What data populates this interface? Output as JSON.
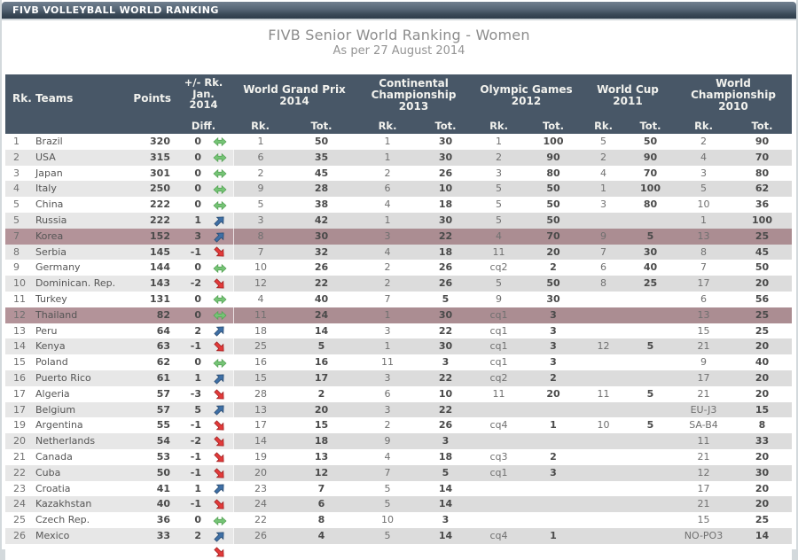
{
  "window": {
    "titlebar": "FIVB VOLLEYBALL WORLD RANKING"
  },
  "header": {
    "title": "FIVB Senior World Ranking - Women",
    "subtitle": "As per 27 August 2014"
  },
  "table": {
    "col_headers": {
      "rank_teams": "Rk. Teams",
      "points": "Points",
      "diff_lines": [
        "+/- Rk.",
        "Jan.",
        "2014"
      ],
      "diff_sub": "Diff.",
      "rk": "Rk.",
      "tot": "Tot.",
      "groups": [
        {
          "lines": [
            "World Grand Prix",
            "2014"
          ]
        },
        {
          "lines": [
            "Continental",
            "Championship",
            "2013"
          ]
        },
        {
          "lines": [
            "Olympic Games",
            "2012"
          ]
        },
        {
          "lines": [
            "World Cup",
            "2011"
          ]
        },
        {
          "lines": [
            "World",
            "Championship",
            "2010"
          ]
        }
      ]
    },
    "rows": [
      {
        "rank": "1",
        "team": "Brazil",
        "points": "320",
        "diff": "0",
        "trend": "same",
        "wgp_rk": "1",
        "wgp_tot": "50",
        "cc_rk": "1",
        "cc_tot": "30",
        "og_rk": "1",
        "og_tot": "100",
        "wc_rk": "5",
        "wc_tot": "50",
        "wch_rk": "2",
        "wch_tot": "90"
      },
      {
        "rank": "2",
        "team": "USA",
        "points": "315",
        "diff": "0",
        "trend": "same",
        "wgp_rk": "6",
        "wgp_tot": "35",
        "cc_rk": "1",
        "cc_tot": "30",
        "og_rk": "2",
        "og_tot": "90",
        "wc_rk": "2",
        "wc_tot": "90",
        "wch_rk": "4",
        "wch_tot": "70"
      },
      {
        "rank": "3",
        "team": "Japan",
        "points": "301",
        "diff": "0",
        "trend": "same",
        "wgp_rk": "2",
        "wgp_tot": "45",
        "cc_rk": "2",
        "cc_tot": "26",
        "og_rk": "3",
        "og_tot": "80",
        "wc_rk": "4",
        "wc_tot": "70",
        "wch_rk": "3",
        "wch_tot": "80"
      },
      {
        "rank": "4",
        "team": "Italy",
        "points": "250",
        "diff": "0",
        "trend": "same",
        "wgp_rk": "9",
        "wgp_tot": "28",
        "cc_rk": "6",
        "cc_tot": "10",
        "og_rk": "5",
        "og_tot": "50",
        "wc_rk": "1",
        "wc_tot": "100",
        "wch_rk": "5",
        "wch_tot": "62"
      },
      {
        "rank": "5",
        "team": "China",
        "points": "222",
        "diff": "0",
        "trend": "same",
        "wgp_rk": "5",
        "wgp_tot": "38",
        "cc_rk": "4",
        "cc_tot": "18",
        "og_rk": "5",
        "og_tot": "50",
        "wc_rk": "3",
        "wc_tot": "80",
        "wch_rk": "10",
        "wch_tot": "36"
      },
      {
        "rank": "5",
        "team": "Russia",
        "points": "222",
        "diff": "1",
        "trend": "up",
        "wgp_rk": "3",
        "wgp_tot": "42",
        "cc_rk": "1",
        "cc_tot": "30",
        "og_rk": "5",
        "og_tot": "50",
        "wc_rk": "",
        "wc_tot": "",
        "wch_rk": "1",
        "wch_tot": "100"
      },
      {
        "rank": "7",
        "team": "Korea",
        "points": "152",
        "diff": "3",
        "trend": "up",
        "wgp_rk": "8",
        "wgp_tot": "30",
        "cc_rk": "3",
        "cc_tot": "22",
        "og_rk": "4",
        "og_tot": "70",
        "wc_rk": "9",
        "wc_tot": "5",
        "wch_rk": "13",
        "wch_tot": "25",
        "highlight": true
      },
      {
        "rank": "8",
        "team": "Serbia",
        "points": "145",
        "diff": "-1",
        "trend": "down",
        "wgp_rk": "7",
        "wgp_tot": "32",
        "cc_rk": "4",
        "cc_tot": "18",
        "og_rk": "11",
        "og_tot": "20",
        "wc_rk": "7",
        "wc_tot": "30",
        "wch_rk": "8",
        "wch_tot": "45"
      },
      {
        "rank": "9",
        "team": "Germany",
        "points": "144",
        "diff": "0",
        "trend": "same",
        "wgp_rk": "10",
        "wgp_tot": "26",
        "cc_rk": "2",
        "cc_tot": "26",
        "og_rk": "cq2",
        "og_tot": "2",
        "wc_rk": "6",
        "wc_tot": "40",
        "wch_rk": "7",
        "wch_tot": "50"
      },
      {
        "rank": "10",
        "team": "Dominican. Rep.",
        "points": "143",
        "diff": "-2",
        "trend": "down",
        "wgp_rk": "12",
        "wgp_tot": "22",
        "cc_rk": "2",
        "cc_tot": "26",
        "og_rk": "5",
        "og_tot": "50",
        "wc_rk": "8",
        "wc_tot": "25",
        "wch_rk": "17",
        "wch_tot": "20"
      },
      {
        "rank": "11",
        "team": "Turkey",
        "points": "131",
        "diff": "0",
        "trend": "same",
        "wgp_rk": "4",
        "wgp_tot": "40",
        "cc_rk": "7",
        "cc_tot": "5",
        "og_rk": "9",
        "og_tot": "30",
        "wc_rk": "",
        "wc_tot": "",
        "wch_rk": "6",
        "wch_tot": "56"
      },
      {
        "rank": "12",
        "team": "Thailand",
        "points": "82",
        "diff": "0",
        "trend": "same",
        "wgp_rk": "11",
        "wgp_tot": "24",
        "cc_rk": "1",
        "cc_tot": "30",
        "og_rk": "cq1",
        "og_tot": "3",
        "wc_rk": "",
        "wc_tot": "",
        "wch_rk": "13",
        "wch_tot": "25",
        "highlight": true
      },
      {
        "rank": "13",
        "team": "Peru",
        "points": "64",
        "diff": "2",
        "trend": "up",
        "wgp_rk": "18",
        "wgp_tot": "14",
        "cc_rk": "3",
        "cc_tot": "22",
        "og_rk": "cq1",
        "og_tot": "3",
        "wc_rk": "",
        "wc_tot": "",
        "wch_rk": "15",
        "wch_tot": "25"
      },
      {
        "rank": "14",
        "team": "Kenya",
        "points": "63",
        "diff": "-1",
        "trend": "down",
        "wgp_rk": "25",
        "wgp_tot": "5",
        "cc_rk": "1",
        "cc_tot": "30",
        "og_rk": "cq1",
        "og_tot": "3",
        "wc_rk": "12",
        "wc_tot": "5",
        "wch_rk": "21",
        "wch_tot": "20"
      },
      {
        "rank": "15",
        "team": "Poland",
        "points": "62",
        "diff": "0",
        "trend": "same",
        "wgp_rk": "16",
        "wgp_tot": "16",
        "cc_rk": "11",
        "cc_tot": "3",
        "og_rk": "cq1",
        "og_tot": "3",
        "wc_rk": "",
        "wc_tot": "",
        "wch_rk": "9",
        "wch_tot": "40"
      },
      {
        "rank": "16",
        "team": "Puerto Rico",
        "points": "61",
        "diff": "1",
        "trend": "up",
        "wgp_rk": "15",
        "wgp_tot": "17",
        "cc_rk": "3",
        "cc_tot": "22",
        "og_rk": "cq2",
        "og_tot": "2",
        "wc_rk": "",
        "wc_tot": "",
        "wch_rk": "17",
        "wch_tot": "20"
      },
      {
        "rank": "17",
        "team": "Algeria",
        "points": "57",
        "diff": "-3",
        "trend": "down",
        "wgp_rk": "28",
        "wgp_tot": "2",
        "cc_rk": "6",
        "cc_tot": "10",
        "og_rk": "11",
        "og_tot": "20",
        "wc_rk": "11",
        "wc_tot": "5",
        "wch_rk": "21",
        "wch_tot": "20"
      },
      {
        "rank": "17",
        "team": "Belgium",
        "points": "57",
        "diff": "5",
        "trend": "up",
        "wgp_rk": "13",
        "wgp_tot": "20",
        "cc_rk": "3",
        "cc_tot": "22",
        "og_rk": "",
        "og_tot": "",
        "wc_rk": "",
        "wc_tot": "",
        "wch_rk": "EU-J3",
        "wch_tot": "15"
      },
      {
        "rank": "19",
        "team": "Argentina",
        "points": "55",
        "diff": "-1",
        "trend": "down",
        "wgp_rk": "17",
        "wgp_tot": "15",
        "cc_rk": "2",
        "cc_tot": "26",
        "og_rk": "cq4",
        "og_tot": "1",
        "wc_rk": "10",
        "wc_tot": "5",
        "wch_rk": "SA-B4",
        "wch_tot": "8"
      },
      {
        "rank": "20",
        "team": "Netherlands",
        "points": "54",
        "diff": "-2",
        "trend": "down",
        "wgp_rk": "14",
        "wgp_tot": "18",
        "cc_rk": "9",
        "cc_tot": "3",
        "og_rk": "",
        "og_tot": "",
        "wc_rk": "",
        "wc_tot": "",
        "wch_rk": "11",
        "wch_tot": "33"
      },
      {
        "rank": "21",
        "team": "Canada",
        "points": "53",
        "diff": "-1",
        "trend": "down",
        "wgp_rk": "19",
        "wgp_tot": "13",
        "cc_rk": "4",
        "cc_tot": "18",
        "og_rk": "cq3",
        "og_tot": "2",
        "wc_rk": "",
        "wc_tot": "",
        "wch_rk": "21",
        "wch_tot": "20"
      },
      {
        "rank": "22",
        "team": "Cuba",
        "points": "50",
        "diff": "-1",
        "trend": "down",
        "wgp_rk": "20",
        "wgp_tot": "12",
        "cc_rk": "7",
        "cc_tot": "5",
        "og_rk": "cq1",
        "og_tot": "3",
        "wc_rk": "",
        "wc_tot": "",
        "wch_rk": "12",
        "wch_tot": "30"
      },
      {
        "rank": "23",
        "team": "Croatia",
        "points": "41",
        "diff": "1",
        "trend": "up",
        "wgp_rk": "23",
        "wgp_tot": "7",
        "cc_rk": "5",
        "cc_tot": "14",
        "og_rk": "",
        "og_tot": "",
        "wc_rk": "",
        "wc_tot": "",
        "wch_rk": "17",
        "wch_tot": "20"
      },
      {
        "rank": "24",
        "team": "Kazakhstan",
        "points": "40",
        "diff": "-1",
        "trend": "down",
        "wgp_rk": "24",
        "wgp_tot": "6",
        "cc_rk": "5",
        "cc_tot": "14",
        "og_rk": "",
        "og_tot": "",
        "wc_rk": "",
        "wc_tot": "",
        "wch_rk": "21",
        "wch_tot": "20"
      },
      {
        "rank": "25",
        "team": "Czech Rep.",
        "points": "36",
        "diff": "0",
        "trend": "same",
        "wgp_rk": "22",
        "wgp_tot": "8",
        "cc_rk": "10",
        "cc_tot": "3",
        "og_rk": "",
        "og_tot": "",
        "wc_rk": "",
        "wc_tot": "",
        "wch_rk": "15",
        "wch_tot": "25"
      },
      {
        "rank": "26",
        "team": "Mexico",
        "points": "33",
        "diff": "2",
        "trend": "up",
        "wgp_rk": "26",
        "wgp_tot": "4",
        "cc_rk": "5",
        "cc_tot": "14",
        "og_rk": "cq4",
        "og_tot": "1",
        "wc_rk": "",
        "wc_tot": "",
        "wch_rk": "NO-PO3",
        "wch_tot": "14"
      }
    ],
    "partial_row": {
      "trend": "down"
    }
  },
  "colors": {
    "titlebar_top": "#71808f",
    "titlebar_bottom": "#2d3b49",
    "header_bg": "#485767",
    "stripe_gray": "#dcdcdc",
    "stripe_gray_left": "#e7e7e7",
    "highlight": "#ab8d92",
    "highlight_left": "#b39399",
    "trend_up": "#3e6fa5",
    "trend_down": "#e23b3b",
    "trend_same": "#76c476",
    "title_text": "#8c8c8c"
  }
}
